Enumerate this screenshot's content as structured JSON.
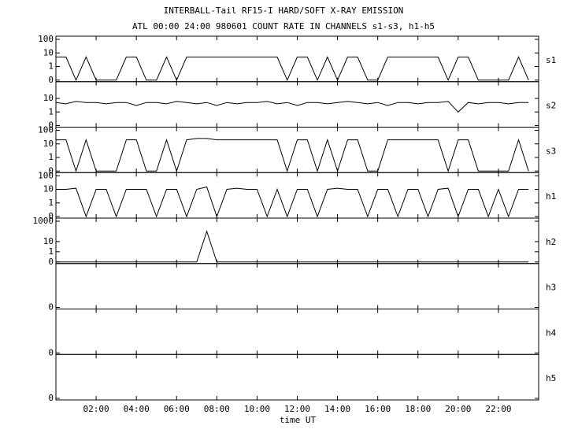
{
  "chart_data": {
    "type": "line",
    "title": "INTERBALL-Tail RF15-I HARD/SOFT X-RAY EMISSION",
    "subtitle": "ATL 00:00 24:00 980601  COUNT RATE IN CHANNELS s1-s3, h1-h5",
    "xlabel": "time UT",
    "xlim": [
      0,
      24
    ],
    "xticks": [
      {
        "value": 2,
        "label": "02:00"
      },
      {
        "value": 4,
        "label": "04:00"
      },
      {
        "value": 6,
        "label": "06:00"
      },
      {
        "value": 8,
        "label": "08:00"
      },
      {
        "value": 10,
        "label": "10:00"
      },
      {
        "value": 12,
        "label": "12:00"
      },
      {
        "value": 14,
        "label": "14:00"
      },
      {
        "value": 16,
        "label": "16:00"
      },
      {
        "value": 18,
        "label": "18:00"
      },
      {
        "value": 20,
        "label": "20:00"
      },
      {
        "value": 22,
        "label": "22:00"
      }
    ],
    "yscale": "log",
    "color": "#000000",
    "x": [
      0,
      0.5,
      1,
      1.5,
      2,
      2.5,
      3,
      3.5,
      4,
      4.5,
      5,
      5.5,
      6,
      6.5,
      7,
      7.5,
      8,
      8.5,
      9,
      9.5,
      10,
      10.5,
      11,
      11.5,
      12,
      12.5,
      13,
      13.5,
      14,
      14.5,
      15,
      15.5,
      16,
      16.5,
      17,
      17.5,
      18,
      18.5,
      19,
      19.5,
      20,
      20.5,
      21,
      21.5,
      22,
      22.5,
      23,
      23.5
    ],
    "panels": [
      {
        "name": "s1",
        "ylim": [
          0,
          100
        ],
        "yticks": [
          0,
          1,
          10,
          100
        ],
        "values": [
          5,
          5,
          0,
          5,
          0,
          0,
          0,
          5,
          5,
          0,
          0,
          5,
          0,
          5,
          5,
          5,
          5,
          5,
          5,
          5,
          5,
          5,
          5,
          0,
          5,
          5,
          0,
          5,
          0,
          5,
          5,
          0,
          0,
          5,
          5,
          5,
          5,
          5,
          5,
          0,
          5,
          5,
          0,
          0,
          0,
          0,
          5,
          0
        ]
      },
      {
        "name": "s2",
        "ylim": [
          0,
          100
        ],
        "yticks": [
          0,
          1,
          10
        ],
        "values": [
          5,
          4,
          6,
          5,
          5,
          4,
          5,
          5,
          3,
          5,
          5,
          4,
          6,
          5,
          4,
          5,
          3,
          5,
          4,
          5,
          5,
          6,
          4,
          5,
          3,
          5,
          5,
          4,
          5,
          6,
          5,
          4,
          5,
          3,
          5,
          5,
          4,
          5,
          5,
          6,
          1,
          5,
          4,
          5,
          5,
          4,
          5,
          5
        ]
      },
      {
        "name": "s3",
        "ylim": [
          0,
          100
        ],
        "yticks": [
          0,
          1,
          10,
          100
        ],
        "values": [
          20,
          20,
          0,
          20,
          0,
          0,
          0,
          20,
          20,
          0,
          0,
          20,
          0,
          20,
          25,
          25,
          20,
          20,
          20,
          20,
          20,
          20,
          20,
          0,
          20,
          20,
          0,
          20,
          0,
          20,
          20,
          0,
          0,
          20,
          20,
          20,
          20,
          20,
          20,
          0,
          20,
          20,
          0,
          0,
          0,
          0,
          20,
          0
        ]
      },
      {
        "name": "h1",
        "ylim": [
          0,
          100
        ],
        "yticks": [
          0,
          1,
          10,
          100
        ],
        "values": [
          10,
          10,
          12,
          0,
          10,
          10,
          0,
          10,
          10,
          10,
          0,
          10,
          10,
          0,
          10,
          15,
          0,
          10,
          12,
          10,
          10,
          0,
          10,
          0,
          10,
          10,
          0,
          10,
          12,
          10,
          10,
          0,
          10,
          10,
          0,
          10,
          10,
          0,
          10,
          12,
          0,
          10,
          10,
          0,
          10,
          0,
          10,
          10
        ]
      },
      {
        "name": "h2",
        "ylim": [
          0,
          1000
        ],
        "yticks": [
          0,
          1,
          10,
          1000
        ],
        "values": [
          0,
          0,
          0,
          0,
          0,
          0,
          0,
          0,
          0,
          0,
          0,
          0,
          0,
          0,
          0,
          100,
          0,
          0,
          0,
          0,
          0,
          0,
          0,
          0,
          0,
          0,
          0,
          0,
          0,
          0,
          0,
          0,
          0,
          0,
          0,
          0,
          0,
          0,
          0,
          0,
          0,
          0,
          0,
          0,
          0,
          0,
          0,
          0
        ]
      },
      {
        "name": "h3",
        "ylim": [
          0,
          1
        ],
        "yticks": [
          0
        ]
      },
      {
        "name": "h4",
        "ylim": [
          0,
          1
        ],
        "yticks": [
          0
        ]
      },
      {
        "name": "h5",
        "ylim": [
          0,
          1
        ],
        "yticks": [
          0
        ]
      }
    ]
  }
}
